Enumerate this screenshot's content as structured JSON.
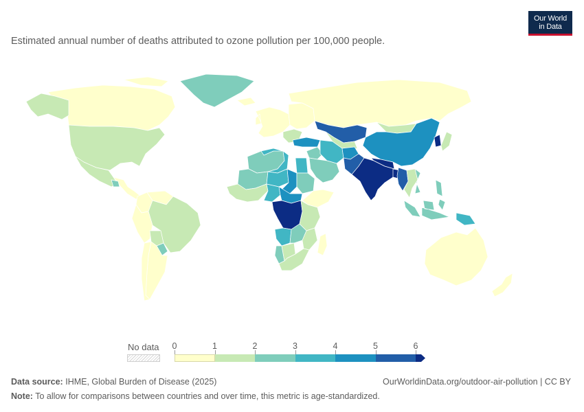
{
  "subtitle": "Estimated annual number of deaths attributed to ozone pollution per 100,000 people.",
  "logo": {
    "line1": "Our World",
    "line2": "in Data"
  },
  "legend": {
    "no_data_label": "No data",
    "ticks": [
      "0",
      "1",
      "2",
      "3",
      "4",
      "5",
      "6"
    ],
    "bins": [
      {
        "min": 0,
        "max": 1,
        "color": "#ffffcc"
      },
      {
        "min": 1,
        "max": 2,
        "color": "#c7e9b4"
      },
      {
        "min": 2,
        "max": 3,
        "color": "#7fcdbb"
      },
      {
        "min": 3,
        "max": 4,
        "color": "#41b6c4"
      },
      {
        "min": 4,
        "max": 5,
        "color": "#1d91c0"
      },
      {
        "min": 5,
        "max": 6,
        "color": "#225ea8"
      },
      {
        "min": 6,
        "max": null,
        "color": "#0c2c84"
      }
    ]
  },
  "footer": {
    "source_label": "Data source:",
    "source_text": "IHME, Global Burden of Disease (2025)",
    "note_label": "Note:",
    "note_text": "To allow for comparisons between countries and over time, this metric is age-standardized.",
    "url_text": "OurWorldinData.org/outdoor-air-pollution | CC BY"
  },
  "colors": {
    "ocean": "#ffffff",
    "border": "#ffffff",
    "bin_0_1": "#ffffcc",
    "bin_1_2": "#c7e9b4",
    "bin_2_3": "#7fcdbb",
    "bin_3_4": "#41b6c4",
    "bin_4_5": "#1d91c0",
    "bin_5_6": "#225ea8",
    "bin_6_plus": "#0c2c84"
  },
  "regions": [
    {
      "name": "Canada",
      "bin": "bin_0_1"
    },
    {
      "name": "Alaska",
      "bin": "bin_1_2"
    },
    {
      "name": "United States",
      "bin": "bin_1_2"
    },
    {
      "name": "Greenland",
      "bin": "bin_2_3"
    },
    {
      "name": "Mexico",
      "bin": "bin_1_2"
    },
    {
      "name": "Central America",
      "bin": "bin_0_1"
    },
    {
      "name": "Guatemala",
      "bin": "bin_2_3"
    },
    {
      "name": "Colombia",
      "bin": "bin_0_1"
    },
    {
      "name": "Venezuela",
      "bin": "bin_0_1"
    },
    {
      "name": "Brazil",
      "bin": "bin_1_2"
    },
    {
      "name": "Peru",
      "bin": "bin_0_1"
    },
    {
      "name": "Bolivia",
      "bin": "bin_1_2"
    },
    {
      "name": "Paraguay",
      "bin": "bin_2_3"
    },
    {
      "name": "Argentina",
      "bin": "bin_0_1"
    },
    {
      "name": "Chile",
      "bin": "bin_0_1"
    },
    {
      "name": "Western Europe",
      "bin": "bin_0_1"
    },
    {
      "name": "Eastern Europe",
      "bin": "bin_0_1"
    },
    {
      "name": "Balkans",
      "bin": "bin_1_2"
    },
    {
      "name": "Iceland",
      "bin": "bin_0_1"
    },
    {
      "name": "Russia",
      "bin": "bin_0_1"
    },
    {
      "name": "Kazakhstan",
      "bin": "bin_5_6"
    },
    {
      "name": "Mongolia",
      "bin": "bin_1_2"
    },
    {
      "name": "China",
      "bin": "bin_4_5"
    },
    {
      "name": "Korea",
      "bin": "bin_6_plus"
    },
    {
      "name": "Japan",
      "bin": "bin_1_2"
    },
    {
      "name": "Turkey",
      "bin": "bin_4_5"
    },
    {
      "name": "Middle East",
      "bin": "bin_2_3"
    },
    {
      "name": "Iran",
      "bin": "bin_3_4"
    },
    {
      "name": "Central Asia",
      "bin": "bin_1_2"
    },
    {
      "name": "Afghanistan",
      "bin": "bin_4_5"
    },
    {
      "name": "Pakistan",
      "bin": "bin_5_6"
    },
    {
      "name": "India",
      "bin": "bin_6_plus"
    },
    {
      "name": "Nepal & Bangladesh",
      "bin": "bin_6_plus"
    },
    {
      "name": "Myanmar",
      "bin": "bin_5_6"
    },
    {
      "name": "Thailand & Laos",
      "bin": "bin_1_2"
    },
    {
      "name": "Vietnam",
      "bin": "bin_2_3"
    },
    {
      "name": "Indonesia",
      "bin": "bin_2_3"
    },
    {
      "name": "Philippines",
      "bin": "bin_2_3"
    },
    {
      "name": "Papua New Guinea",
      "bin": "bin_3_4"
    },
    {
      "name": "Australia",
      "bin": "bin_0_1"
    },
    {
      "name": "New Zealand",
      "bin": "bin_0_1"
    },
    {
      "name": "North Africa",
      "bin": "bin_2_3"
    },
    {
      "name": "Algeria",
      "bin": "bin_3_4"
    },
    {
      "name": "Egypt",
      "bin": "bin_3_4"
    },
    {
      "name": "Mali & Sahel",
      "bin": "bin_2_3"
    },
    {
      "name": "Niger",
      "bin": "bin_3_4"
    },
    {
      "name": "Chad",
      "bin": "bin_4_5"
    },
    {
      "name": "Sudan",
      "bin": "bin_2_3"
    },
    {
      "name": "West Africa Coast",
      "bin": "bin_1_2"
    },
    {
      "name": "Nigeria",
      "bin": "bin_3_4"
    },
    {
      "name": "Central African Republic",
      "bin": "bin_4_5"
    },
    {
      "name": "Ethiopia & Horn",
      "bin": "bin_0_1"
    },
    {
      "name": "Congo",
      "bin": "bin_6_plus"
    },
    {
      "name": "East Africa",
      "bin": "bin_1_2"
    },
    {
      "name": "Angola",
      "bin": "bin_3_4"
    },
    {
      "name": "Zambia",
      "bin": "bin_2_3"
    },
    {
      "name": "Mozambique",
      "bin": "bin_1_2"
    },
    {
      "name": "Namibia",
      "bin": "bin_2_3"
    },
    {
      "name": "Botswana",
      "bin": "bin_1_2"
    },
    {
      "name": "South Africa",
      "bin": "bin_1_2"
    },
    {
      "name": "Madagascar",
      "bin": "bin_0_1"
    },
    {
      "name": "Saudi Arabia",
      "bin": "bin_2_3"
    }
  ]
}
